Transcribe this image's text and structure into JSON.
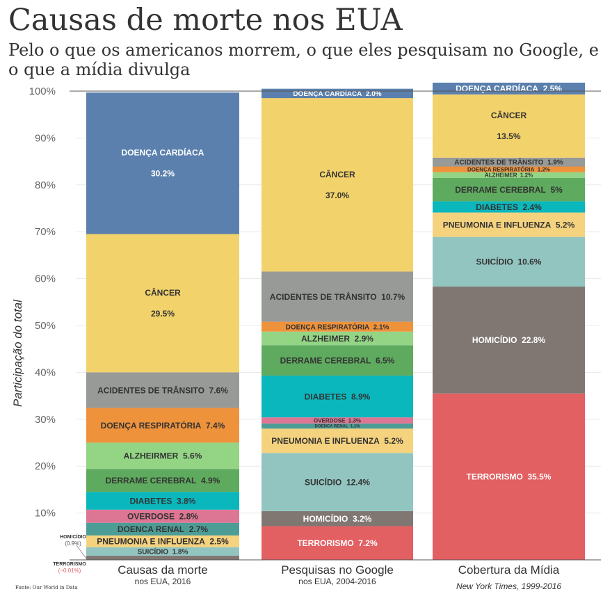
{
  "title": "Causas de morte nos EUA",
  "subtitle": "Pelo o que os americanos morrem, o que eles pesquisam no Google, e o que a mídia divulga",
  "source": "Fonte: Our World in Data",
  "colors": {
    "DOENÇA CARDÍACA": "#5b80ad",
    "CÂNCER": "#f2d26b",
    "ACIDENTES DE TRÂNSITO": "#989a97",
    "DOENÇA RESPIRATÓRIA": "#ee923c",
    "ALZHEIMER": "#94d585",
    "DERRAME CEREBRAL": "#5eaa5e",
    "DIABETES": "#0ab7bd",
    "OVERDOSE": "#dd7694",
    "DOENCA RENAL": "#4d9d97",
    "PNEUMONIA E INFLUENZA": "#f5d27e",
    "SUICÍDIO": "#92c5c0",
    "HOMICÍDIO": "#807773",
    "TERRORISMO": "#e25f62"
  },
  "chart_data": {
    "type": "bar",
    "stacked": true,
    "ylabel": "Participação do total",
    "ylim": [
      0,
      100
    ],
    "yticks": [
      "100%",
      "90%",
      "80%",
      "70%",
      "60%",
      "50%",
      "40%",
      "30%",
      "20%",
      "10%"
    ],
    "categories": [
      {
        "name": "Causas da morte",
        "sub": "nos EUA, 2016",
        "sub_italic": false
      },
      {
        "name": "Pesquisas no Google",
        "sub": "nos EUA, 2004-2016",
        "sub_italic": false
      },
      {
        "name": "Cobertura da Mídia",
        "sub": "New York Times, 1999-2016",
        "sub_italic": true
      }
    ],
    "columns": [
      {
        "segments": [
          {
            "label": "TERRORISMO",
            "value": 0.01,
            "value_text": ""
          },
          {
            "label": "HOMICÍDIO",
            "value": 0.9,
            "value_text": ""
          },
          {
            "label": "SUICÍDIO",
            "value": 1.8,
            "value_text": "1.8%"
          },
          {
            "label": "PNEUMONIA E INFLUENZA",
            "value": 2.5,
            "value_text": "2.5%"
          },
          {
            "label": "DOENCA RENAL",
            "value": 2.7,
            "value_text": "2.7%"
          },
          {
            "label": "OVERDOSE",
            "value": 2.8,
            "value_text": "2.8%"
          },
          {
            "label": "DIABETES",
            "value": 3.8,
            "value_text": "3.8%"
          },
          {
            "label": "DERRAME CEREBRAL",
            "value": 4.9,
            "value_text": "4.9%"
          },
          {
            "label": "ALZHEIRMER",
            "color_key": "ALZHEIMER",
            "value": 5.6,
            "value_text": "5.6%"
          },
          {
            "label": "DOENÇA RESPIRATÓRIA",
            "value": 7.4,
            "value_text": "7.4%"
          },
          {
            "label": "ACIDENTES DE TRÂNSITO",
            "value": 7.6,
            "value_text": "7.6%"
          },
          {
            "label": "CÂNCER",
            "value": 29.5,
            "value_text": "29.5%",
            "stacked_label": true
          },
          {
            "label": "DOENÇA CARDÍACA",
            "value": 30.2,
            "value_text": "30.2%",
            "stacked_label": true
          }
        ],
        "side_notes": [
          {
            "label": "HOMICÍDIO",
            "value_text": "(0.9%)"
          },
          {
            "label": "TERRORISMO",
            "value_text": "(~0.01%)"
          }
        ]
      },
      {
        "segments": [
          {
            "label": "TERRORISMO",
            "value": 7.2,
            "value_text": "7.2%"
          },
          {
            "label": "HOMICÍDIO",
            "value": 3.2,
            "value_text": "3.2%"
          },
          {
            "label": "SUICÍDIO",
            "value": 12.4,
            "value_text": "12.4%"
          },
          {
            "label": "PNEUMONIA E INFLUENZA",
            "value": 5.2,
            "value_text": "5.2%"
          },
          {
            "label": "DOENCA RENAL",
            "value": 1.1,
            "value_text": "1.1%"
          },
          {
            "label": "OVERDOSE",
            "value": 1.3,
            "value_text": "1.3%"
          },
          {
            "label": "DIABETES",
            "value": 8.9,
            "value_text": "8.9%"
          },
          {
            "label": "DERRAME CEREBRAL",
            "value": 6.5,
            "value_text": "6.5%"
          },
          {
            "label": "ALZHEIMER",
            "value": 2.9,
            "value_text": "2.9%"
          },
          {
            "label": "DOENÇA RESPIRATÓRIA",
            "value": 2.1,
            "value_text": "2.1%"
          },
          {
            "label": "ACIDENTES DE TRÂNSITO",
            "value": 10.7,
            "value_text": "10.7%"
          },
          {
            "label": "CÂNCER",
            "value": 37.0,
            "value_text": "37.0%",
            "stacked_label": true
          },
          {
            "label": "DOENÇA CARDÍACA",
            "value": 2.0,
            "value_text": "2.0%"
          }
        ]
      },
      {
        "segments": [
          {
            "label": "TERRORISMO",
            "value": 35.5,
            "value_text": "35.5%"
          },
          {
            "label": "HOMICÍDIO",
            "value": 22.8,
            "value_text": "22.8%"
          },
          {
            "label": "SUICÍDIO",
            "value": 10.6,
            "value_text": "10.6%"
          },
          {
            "label": "PNEUMONIA E INFLUENZA",
            "value": 5.2,
            "value_text": "5.2%"
          },
          {
            "label": "DIABETES",
            "value": 2.4,
            "value_text": "2.4%"
          },
          {
            "label": "DERRAME CEREBRAL",
            "value": 5.0,
            "value_text": "5%"
          },
          {
            "label": "ALZHEIMER",
            "value": 1.2,
            "value_text": "1.2%"
          },
          {
            "label": "DOENÇA RESPIRATÓRIA",
            "value": 1.2,
            "value_text": "1.2%"
          },
          {
            "label": "ACIDENTES DE TRÂNSITO",
            "value": 1.9,
            "value_text": "1.9%"
          },
          {
            "label": "CÂNCER",
            "value": 13.5,
            "value_text": "13.5%",
            "stacked_label": true
          },
          {
            "label": "DOENÇA CARDÍACA",
            "value": 2.5,
            "value_text": "2.5%"
          }
        ]
      }
    ]
  }
}
